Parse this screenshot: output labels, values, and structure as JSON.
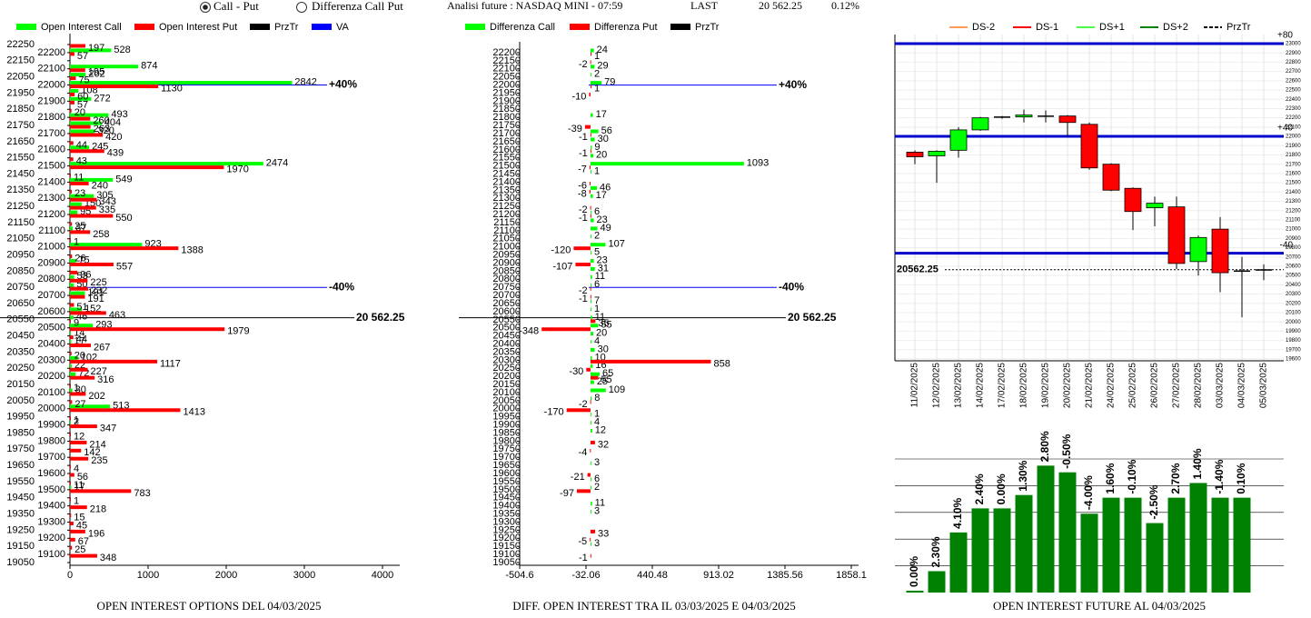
{
  "header": {
    "options": [
      {
        "label": "Call - Put",
        "selected": true
      },
      {
        "label": "Differenza Call Put",
        "selected": false
      }
    ],
    "title": "Analisi future : NASDAQ MINI - 07:59",
    "last_label": "LAST",
    "last": "20 562.25",
    "change": "0.12%"
  },
  "chart_data": [
    {
      "type": "hbar",
      "title": "OPEN INTEREST OPTIONS DEL 04/03/2025",
      "categories": [
        22250,
        22200,
        22150,
        22100,
        22050,
        22000,
        21950,
        21900,
        21850,
        21800,
        21750,
        21700,
        21650,
        21600,
        21550,
        21500,
        21450,
        21400,
        21350,
        21300,
        21250,
        21200,
        21150,
        21100,
        21050,
        21000,
        20950,
        20900,
        20850,
        20800,
        20750,
        20700,
        20650,
        20600,
        20550,
        20500,
        20450,
        20400,
        20350,
        20300,
        20250,
        20200,
        20150,
        20100,
        20050,
        20000,
        19950,
        19900,
        19850,
        19800,
        19750,
        19700,
        19650,
        19600,
        19550,
        19500,
        19450,
        19400,
        19350,
        19300,
        19250,
        19200,
        19150,
        19100,
        19050
      ],
      "series": [
        {
          "name": "Open Interest Call",
          "color": "#00ff00",
          "values": [
            null,
            528,
            null,
            874,
            202,
            2842,
            108,
            272,
            null,
            493,
            404,
            320,
            null,
            245,
            null,
            2474,
            null,
            549,
            null,
            305,
            150,
            95,
            null,
            37,
            null,
            923,
            null,
            75,
            null,
            53,
            50,
            191,
            null,
            152,
            46,
            293,
            14,
            17,
            null,
            102,
            22,
            72,
            null,
            30,
            null,
            513,
            null,
            2,
            null,
            null,
            null,
            null,
            null,
            null,
            null,
            17,
            null,
            null,
            null,
            null,
            null,
            null,
            null,
            null,
            null
          ]
        },
        {
          "name": "Open Interest Put",
          "color": "#ff0000",
          "values": [
            197,
            57,
            null,
            195,
            75,
            1130,
            60,
            57,
            20,
            260,
            263,
            420,
            44,
            439,
            43,
            1970,
            11,
            240,
            23,
            343,
            335,
            550,
            25,
            258,
            1,
            1388,
            26,
            557,
            96,
            225,
            232,
            191,
            51,
            463,
            9,
            1979,
            44,
            267,
            20,
            1117,
            227,
            316,
            1,
            202,
            27,
            1413,
            1,
            347,
            12,
            214,
            142,
            235,
            4,
            56,
            11,
            783,
            1,
            218,
            15,
            45,
            196,
            67,
            25,
            348,
            null
          ]
        }
      ],
      "legend_items": [
        {
          "name": "PrzTr",
          "color": "#000000"
        },
        {
          "name": "VA",
          "color": "#0000ff"
        }
      ],
      "xlim": [
        0,
        4000
      ],
      "xticks": [
        0,
        1000,
        2000,
        3000,
        4000
      ],
      "levels": [
        {
          "value": 22000,
          "label": "+40%",
          "color": "#0000ff"
        },
        {
          "value": 20750,
          "label": "-40%",
          "color": "#0000ff"
        },
        {
          "value": 20562.25,
          "label": "20 562.25",
          "color": "#000000"
        }
      ]
    },
    {
      "type": "hbar",
      "title": "DIFF. OPEN INTEREST TRA IL 03/03/2025 E 04/03/2025",
      "categories": [
        22200,
        22150,
        22100,
        22050,
        22000,
        21950,
        21900,
        21850,
        21800,
        21750,
        21700,
        21650,
        21600,
        21550,
        21500,
        21450,
        21400,
        21350,
        21300,
        21250,
        21200,
        21150,
        21100,
        21050,
        21000,
        20950,
        20900,
        20850,
        20800,
        20750,
        20700,
        20650,
        20600,
        20550,
        20500,
        20450,
        20400,
        20350,
        20300,
        20250,
        20200,
        20150,
        20100,
        20050,
        20000,
        19950,
        19900,
        19850,
        19800,
        19750,
        19700,
        19650,
        19600,
        19550,
        19500,
        19450,
        19400,
        19350,
        19300,
        19250,
        19200,
        19150,
        19100,
        19050
      ],
      "series": [
        {
          "name": "Differenza Call",
          "color": "#00ff00",
          "values": [
            24,
            null,
            29,
            2,
            79,
            null,
            null,
            null,
            17,
            null,
            56,
            30,
            9,
            20,
            1093,
            1,
            null,
            46,
            17,
            null,
            6,
            23,
            49,
            2,
            107,
            5,
            23,
            31,
            11,
            6,
            null,
            7,
            1,
            11,
            55,
            20,
            4,
            30,
            10,
            16,
            65,
            25,
            109,
            8,
            null,
            1,
            4,
            12,
            null,
            null,
            null,
            3,
            null,
            6,
            2,
            null,
            11,
            3,
            null,
            null,
            null,
            3,
            null,
            null
          ]
        },
        {
          "name": "Differenza Put",
          "color": "#ff0000",
          "values": [
            1,
            -2,
            null,
            null,
            1,
            -10,
            null,
            null,
            null,
            -39,
            -1,
            null,
            -1,
            null,
            -7,
            null,
            -6,
            -8,
            null,
            -2,
            -1,
            null,
            null,
            null,
            -120,
            null,
            -107,
            null,
            null,
            -2,
            -1,
            null,
            null,
            35,
            -348,
            null,
            null,
            null,
            858,
            -30,
            55,
            null,
            null,
            -2,
            -170,
            null,
            null,
            null,
            32,
            -4,
            null,
            null,
            -21,
            null,
            -97,
            null,
            null,
            null,
            null,
            33,
            -5,
            null,
            -1,
            null
          ]
        }
      ],
      "legend_items": [
        {
          "name": "PrzTr",
          "color": "#000000"
        }
      ],
      "xlim": [
        -504.6,
        1858.1
      ],
      "xticks": [
        -504.6,
        -32.06,
        440.48,
        913.02,
        1385.56,
        1858.1
      ],
      "levels": [
        {
          "value": 22000,
          "label": "+40%",
          "color": "#0000ff"
        },
        {
          "value": 20750,
          "label": "-40%",
          "color": "#0000ff"
        },
        {
          "value": 20562.25,
          "label": "20 562.25",
          "color": "#000000"
        }
      ]
    },
    {
      "type": "candlestick",
      "categories": [
        "11/02/2025",
        "12/02/2025",
        "13/02/2025",
        "14/02/2025",
        "17/02/2025",
        "18/02/2025",
        "19/02/2025",
        "20/02/2025",
        "21/02/2025",
        "24/02/2025",
        "25/02/2025",
        "26/02/2025",
        "27/02/2025",
        "28/02/2025",
        "03/03/2025",
        "04/03/2025",
        "05/03/2025"
      ],
      "open": [
        21830,
        21790,
        21850,
        22070,
        22200,
        22210,
        22220,
        22220,
        22130,
        21700,
        21440,
        21230,
        21240,
        20650,
        21000,
        20540,
        20560
      ],
      "close": [
        21780,
        21840,
        22070,
        22200,
        22210,
        22230,
        22220,
        22150,
        21660,
        21420,
        21190,
        21280,
        20630,
        20910,
        20530,
        20550,
        20562.25
      ],
      "high": [
        21850,
        21850,
        22100,
        22210,
        22220,
        22290,
        22280,
        22230,
        22150,
        21710,
        21450,
        21350,
        21350,
        20930,
        21130,
        20700,
        20620
      ],
      "low": [
        21700,
        21500,
        21770,
        22060,
        22190,
        22150,
        22150,
        22000,
        21640,
        21410,
        20990,
        21030,
        20570,
        20500,
        20320,
        20050,
        20450
      ],
      "up_color": "#00ff00",
      "down_color": "#ff0000",
      "legend_items": [
        {
          "name": "DS-2",
          "color": "#ff9955"
        },
        {
          "name": "DS-1",
          "color": "#ff0000"
        },
        {
          "name": "DS+1",
          "color": "#44ff44"
        },
        {
          "name": "DS+2",
          "color": "#008000"
        },
        {
          "name": "PrzTr",
          "color": "#000000",
          "dashed": true
        }
      ],
      "ylim": [
        19600,
        23000
      ],
      "yticks": [
        19600,
        19700,
        19800,
        19900,
        20000,
        20100,
        20200,
        20300,
        20400,
        20500,
        20600,
        20700,
        20800,
        20900,
        21000,
        21100,
        21200,
        21300,
        21400,
        21500,
        21600,
        21700,
        21800,
        21900,
        22000,
        22100,
        22200,
        22300,
        22400,
        22500,
        22600,
        22700,
        22800,
        22900,
        23000
      ],
      "levels": [
        {
          "value": 23000,
          "label": "+80",
          "color": "#0000cc"
        },
        {
          "value": 22000,
          "label": "+40",
          "color": "#0000cc"
        },
        {
          "value": 20740,
          "label": "-40",
          "color": "#0000cc"
        }
      ],
      "last": {
        "value": 20562.25,
        "label": "20562.25"
      }
    },
    {
      "type": "bar",
      "title": "OPEN INTEREST FUTURE AL 04/03/2025",
      "values": [
        1.4,
        16,
        45,
        63,
        63,
        73,
        95,
        90,
        59,
        71,
        71,
        52,
        71,
        82,
        71,
        71
      ],
      "change_labels": [
        "0.00%",
        "2.30%",
        "4.10%",
        "2.40%",
        "0.00%",
        "1.30%",
        "2.80%",
        "-0.50%",
        "-4.00%",
        "1.60%",
        "-0.10%",
        "-2.50%",
        "2.70%",
        "1.40%",
        "-1.40%",
        "0.10%"
      ],
      "color": "#008000",
      "ylim": [
        0,
        100
      ],
      "yticks": [
        20,
        40,
        60,
        80,
        100
      ],
      "grid": true
    }
  ]
}
